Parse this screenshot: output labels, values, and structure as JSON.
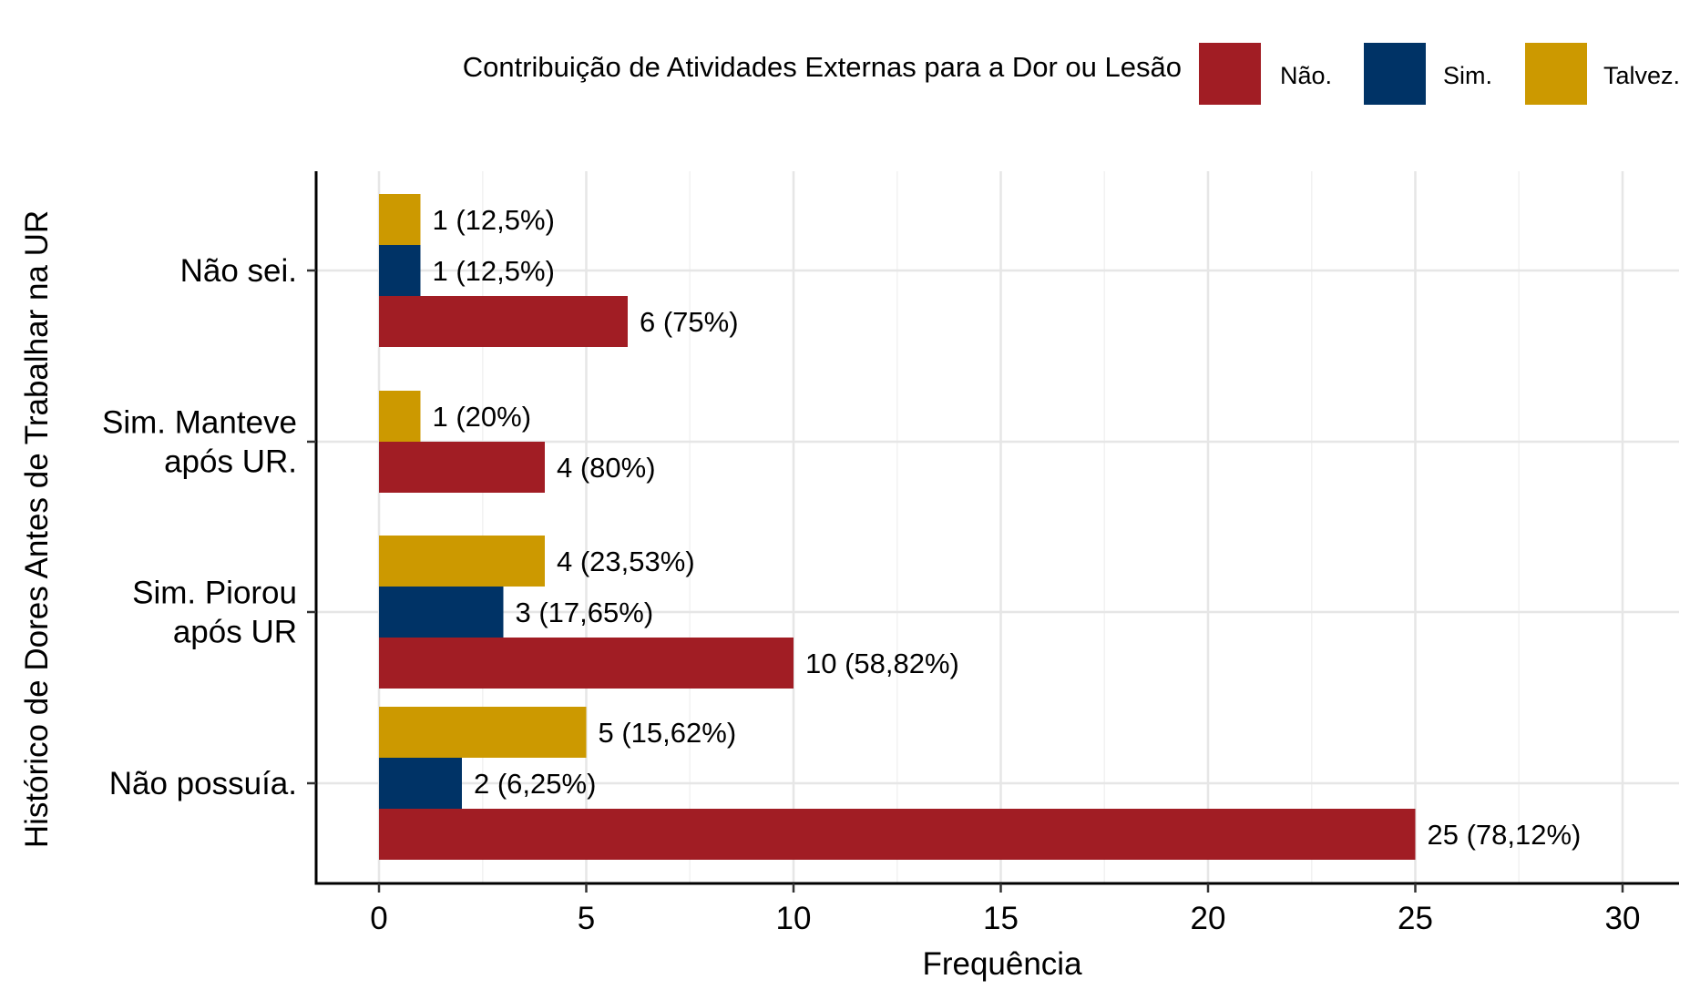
{
  "chart_data": {
    "type": "bar",
    "orientation": "horizontal",
    "title": "",
    "xlabel": "Frequência",
    "ylabel": "Histórico de Dores Antes de Trabalhar na UR",
    "xlim": [
      0,
      30
    ],
    "xticks": [
      0,
      5,
      10,
      15,
      20,
      25,
      30
    ],
    "x_tick_labels": [
      "0",
      "5",
      "10",
      "15",
      "20",
      "25",
      "30"
    ],
    "grid": true,
    "legend_position": "top",
    "legend_title": "Contribuição de Atividades Externas para a Dor ou Lesão",
    "categories": [
      {
        "lines": [
          "Não sei."
        ]
      },
      {
        "lines": [
          "Sim. Manteve",
          "após UR."
        ]
      },
      {
        "lines": [
          "Sim. Piorou",
          "após UR"
        ]
      },
      {
        "lines": [
          "Não possuía."
        ]
      }
    ],
    "series": [
      {
        "name": "Não.",
        "color": "#A11D24",
        "values": [
          6,
          4,
          10,
          25
        ],
        "labels": [
          "6 (75%)",
          "4 (80%)",
          "10 (58,82%)",
          "25 (78,12%)"
        ]
      },
      {
        "name": "Sim.",
        "color": "#003366",
        "values": [
          1,
          null,
          3,
          2
        ],
        "labels": [
          "1 (12,5%)",
          null,
          "3 (17,65%)",
          "2 (6,25%)"
        ]
      },
      {
        "name": "Talvez.",
        "color": "#CC9900",
        "values": [
          1,
          1,
          4,
          5
        ],
        "labels": [
          "1 (12,5%)",
          "1 (20%)",
          "4 (23,53%)",
          "5 (15,62%)"
        ]
      }
    ]
  }
}
